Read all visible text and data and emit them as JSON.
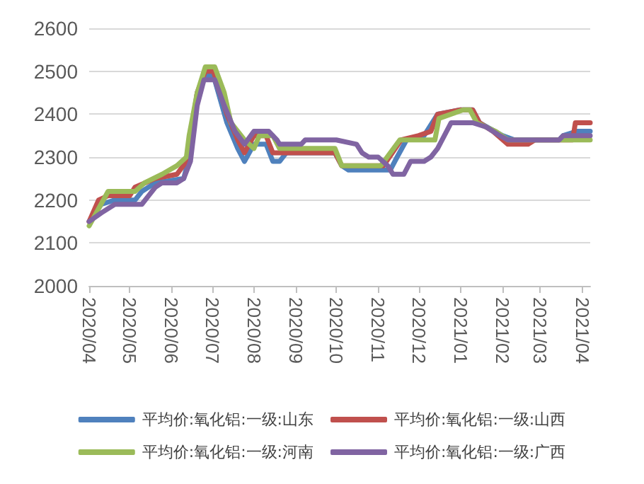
{
  "chart_data": {
    "type": "line",
    "xlim": [
      "2020-04-01",
      "2021-04-07"
    ],
    "ylim": [
      2000,
      2600
    ],
    "yticks": [
      2000,
      2100,
      2200,
      2300,
      2400,
      2500,
      2600
    ],
    "xticks": [
      {
        "value": "2020-04-01",
        "label": "2020/04"
      },
      {
        "value": "2020-05-01",
        "label": "2020/05"
      },
      {
        "value": "2020-06-01",
        "label": "2020/06"
      },
      {
        "value": "2020-07-01",
        "label": "2020/07"
      },
      {
        "value": "2020-08-01",
        "label": "2020/08"
      },
      {
        "value": "2020-09-01",
        "label": "2020/09"
      },
      {
        "value": "2020-10-01",
        "label": "2020/10"
      },
      {
        "value": "2020-11-01",
        "label": "2020/11"
      },
      {
        "value": "2020-12-01",
        "label": "2020/12"
      },
      {
        "value": "2021-01-01",
        "label": "2021/01"
      },
      {
        "value": "2021-02-01",
        "label": "2021/02"
      },
      {
        "value": "2021-03-01",
        "label": "2021/03"
      },
      {
        "value": "2021-04-01",
        "label": "2021/04"
      }
    ],
    "grid": "y",
    "legend": "bottom",
    "marker": "none",
    "line_style": "solid",
    "series": [
      {
        "name": "平均价:氧化铝:一级:山东",
        "color": "#4f81bd",
        "x": [
          "2020-04-01",
          "2020-04-10",
          "2020-04-20",
          "2020-05-05",
          "2020-05-10",
          "2020-05-20",
          "2020-06-10",
          "2020-06-14",
          "2020-06-20",
          "2020-06-26",
          "2020-07-02",
          "2020-07-12",
          "2020-07-20",
          "2020-07-25",
          "2020-08-01",
          "2020-08-10",
          "2020-08-15",
          "2020-08-20",
          "2020-08-25",
          "2020-09-30",
          "2020-10-05",
          "2020-10-10",
          "2020-11-10",
          "2020-11-15",
          "2020-11-22",
          "2020-12-05",
          "2020-12-15",
          "2021-01-01",
          "2021-01-10",
          "2021-01-15",
          "2021-02-01",
          "2021-02-10",
          "2021-03-15",
          "2021-03-18",
          "2021-03-28",
          "2021-04-07"
        ],
        "values": [
          2150,
          2190,
          2200,
          2200,
          2220,
          2240,
          2250,
          2300,
          2450,
          2490,
          2490,
          2380,
          2320,
          2290,
          2330,
          2330,
          2290,
          2290,
          2310,
          2310,
          2280,
          2270,
          2270,
          2300,
          2340,
          2350,
          2400,
          2410,
          2410,
          2380,
          2350,
          2340,
          2340,
          2350,
          2360,
          2360
        ]
      },
      {
        "name": "平均价:氧化铝:一级:山西",
        "color": "#c0504d",
        "x": [
          "2020-04-01",
          "2020-04-08",
          "2020-04-15",
          "2020-05-01",
          "2020-05-05",
          "2020-05-20",
          "2020-06-05",
          "2020-06-12",
          "2020-06-20",
          "2020-06-26",
          "2020-07-02",
          "2020-07-12",
          "2020-07-20",
          "2020-07-25",
          "2020-08-01",
          "2020-08-10",
          "2020-08-15",
          "2020-09-30",
          "2020-10-05",
          "2020-11-05",
          "2020-11-18",
          "2020-12-01",
          "2020-12-10",
          "2020-12-15",
          "2021-01-01",
          "2021-01-10",
          "2021-01-15",
          "2021-01-25",
          "2021-02-05",
          "2021-02-20",
          "2021-02-25",
          "2021-03-25",
          "2021-03-27",
          "2021-04-07"
        ],
        "values": [
          2150,
          2200,
          2210,
          2210,
          2230,
          2250,
          2260,
          2290,
          2450,
          2500,
          2500,
          2400,
          2340,
          2310,
          2350,
          2350,
          2310,
          2310,
          2280,
          2280,
          2340,
          2350,
          2360,
          2400,
          2410,
          2410,
          2380,
          2360,
          2330,
          2330,
          2340,
          2340,
          2380,
          2380
        ]
      },
      {
        "name": "平均价:氧化铝:一级:河南",
        "color": "#9bbb59",
        "x": [
          "2020-04-01",
          "2020-04-08",
          "2020-04-15",
          "2020-05-05",
          "2020-05-12",
          "2020-05-25",
          "2020-06-05",
          "2020-06-12",
          "2020-06-14",
          "2020-06-20",
          "2020-06-26",
          "2020-07-03",
          "2020-07-10",
          "2020-07-15",
          "2020-07-25",
          "2020-08-01",
          "2020-08-05",
          "2020-08-15",
          "2020-08-20",
          "2020-09-30",
          "2020-10-05",
          "2020-11-03",
          "2020-11-17",
          "2020-12-13",
          "2020-12-16",
          "2021-01-03",
          "2021-01-08",
          "2021-01-13",
          "2021-01-27",
          "2021-02-05",
          "2021-04-07"
        ],
        "values": [
          2140,
          2180,
          2220,
          2220,
          2240,
          2260,
          2280,
          2300,
          2350,
          2450,
          2510,
          2510,
          2450,
          2380,
          2340,
          2320,
          2350,
          2350,
          2320,
          2320,
          2280,
          2280,
          2340,
          2340,
          2390,
          2410,
          2410,
          2380,
          2360,
          2340,
          2340
        ]
      },
      {
        "name": "平均价:氧化铝:一级:广西",
        "color": "#8064a2",
        "x": [
          "2020-04-01",
          "2020-04-10",
          "2020-04-20",
          "2020-05-10",
          "2020-05-15",
          "2020-05-20",
          "2020-05-25",
          "2020-06-05",
          "2020-06-10",
          "2020-06-15",
          "2020-06-20",
          "2020-06-25",
          "2020-07-03",
          "2020-07-10",
          "2020-07-18",
          "2020-07-25",
          "2020-08-01",
          "2020-08-12",
          "2020-08-18",
          "2020-08-20",
          "2020-09-05",
          "2020-09-08",
          "2020-10-01",
          "2020-10-16",
          "2020-10-20",
          "2020-10-25",
          "2020-11-01",
          "2020-11-08",
          "2020-11-12",
          "2020-11-20",
          "2020-11-25",
          "2020-12-05",
          "2020-12-10",
          "2020-12-15",
          "2020-12-20",
          "2020-12-25",
          "2021-01-10",
          "2021-01-20",
          "2021-01-30",
          "2021-02-05",
          "2021-03-15",
          "2021-03-18",
          "2021-04-07"
        ],
        "values": [
          2150,
          2170,
          2190,
          2190,
          2210,
          2230,
          2240,
          2240,
          2250,
          2290,
          2420,
          2480,
          2480,
          2420,
          2360,
          2330,
          2360,
          2360,
          2340,
          2330,
          2330,
          2340,
          2340,
          2330,
          2310,
          2300,
          2300,
          2280,
          2260,
          2260,
          2290,
          2290,
          2300,
          2320,
          2350,
          2380,
          2380,
          2370,
          2350,
          2340,
          2340,
          2350,
          2350
        ]
      }
    ]
  }
}
